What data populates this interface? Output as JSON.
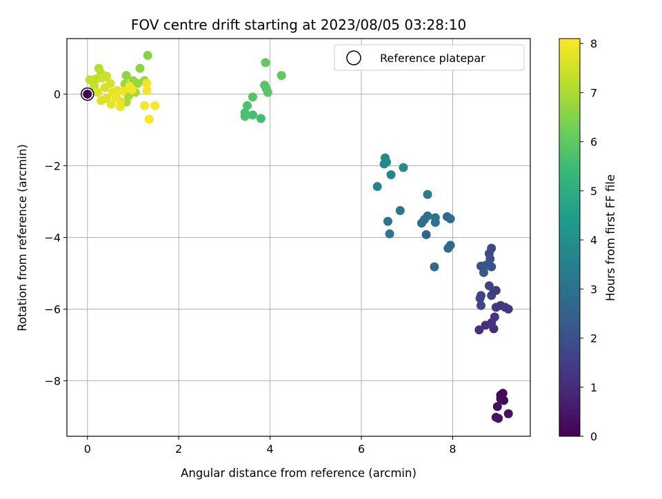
{
  "chart_data": {
    "type": "scatter",
    "title": "FOV centre drift starting at 2023/08/05 03:28:10",
    "xlabel": "Angular distance from reference (arcmin)",
    "ylabel": "Rotation from reference (arcmin)",
    "xlim": [
      -0.45,
      9.7
    ],
    "ylim": [
      -9.55,
      1.55
    ],
    "xticks": [
      0,
      2,
      4,
      6,
      8
    ],
    "yticks": [
      0,
      -2,
      -4,
      -6,
      -8
    ],
    "grid": true,
    "legend": {
      "placement": "top-right",
      "entries": [
        "Reference platepar"
      ]
    },
    "colorbar": {
      "label": "Hours from first FF file",
      "min": 0,
      "max": 8.1,
      "ticks": [
        0,
        1,
        2,
        3,
        4,
        5,
        6,
        7,
        8
      ],
      "colormap": "viridis",
      "colors": [
        "#440154",
        "#482878",
        "#3e4989",
        "#31688e",
        "#26828e",
        "#1f9e89",
        "#35b779",
        "#6ece58",
        "#b5de2b",
        "#fde725"
      ]
    },
    "reference_point": {
      "x": 0,
      "y": 0
    },
    "points": [
      {
        "x": 0,
        "y": 0,
        "c": 0
      },
      {
        "x": 9.05,
        "y": -8.4,
        "c": 0.1
      },
      {
        "x": 9.1,
        "y": -8.35,
        "c": 0.15
      },
      {
        "x": 9.05,
        "y": -8.5,
        "c": 0.2
      },
      {
        "x": 9.12,
        "y": -8.55,
        "c": 0.25
      },
      {
        "x": 8.98,
        "y": -8.72,
        "c": 0.3
      },
      {
        "x": 9.22,
        "y": -8.92,
        "c": 0.35
      },
      {
        "x": 8.95,
        "y": -9.02,
        "c": 0.4
      },
      {
        "x": 9.0,
        "y": -9.05,
        "c": 0.45
      },
      {
        "x": 8.9,
        "y": -6.55,
        "c": 1.0
      },
      {
        "x": 8.58,
        "y": -6.58,
        "c": 1.05
      },
      {
        "x": 8.72,
        "y": -6.45,
        "c": 1.1
      },
      {
        "x": 8.85,
        "y": -6.38,
        "c": 1.15
      },
      {
        "x": 8.92,
        "y": -6.22,
        "c": 1.2
      },
      {
        "x": 9.05,
        "y": -5.9,
        "c": 1.25
      },
      {
        "x": 8.95,
        "y": -5.95,
        "c": 1.3
      },
      {
        "x": 9.15,
        "y": -5.95,
        "c": 1.35
      },
      {
        "x": 9.22,
        "y": -6.0,
        "c": 1.4
      },
      {
        "x": 8.95,
        "y": -5.48,
        "c": 1.45
      },
      {
        "x": 8.9,
        "y": -5.5,
        "c": 1.5
      },
      {
        "x": 8.85,
        "y": -5.62,
        "c": 1.55
      },
      {
        "x": 8.8,
        "y": -5.35,
        "c": 1.6
      },
      {
        "x": 8.62,
        "y": -5.62,
        "c": 1.65
      },
      {
        "x": 8.6,
        "y": -5.7,
        "c": 1.7
      },
      {
        "x": 8.62,
        "y": -5.9,
        "c": 1.75
      },
      {
        "x": 8.85,
        "y": -4.3,
        "c": 1.8
      },
      {
        "x": 8.8,
        "y": -4.45,
        "c": 1.85
      },
      {
        "x": 8.82,
        "y": -4.6,
        "c": 1.9
      },
      {
        "x": 8.78,
        "y": -4.75,
        "c": 1.95
      },
      {
        "x": 8.85,
        "y": -4.82,
        "c": 2.0
      },
      {
        "x": 8.62,
        "y": -4.8,
        "c": 2.05
      },
      {
        "x": 8.68,
        "y": -4.85,
        "c": 2.1
      },
      {
        "x": 8.72,
        "y": -4.78,
        "c": 2.15
      },
      {
        "x": 8.68,
        "y": -4.98,
        "c": 2.2
      },
      {
        "x": 7.42,
        "y": -3.92,
        "c": 2.6
      },
      {
        "x": 7.6,
        "y": -4.82,
        "c": 2.65
      },
      {
        "x": 7.9,
        "y": -4.3,
        "c": 2.7
      },
      {
        "x": 7.95,
        "y": -4.22,
        "c": 2.75
      },
      {
        "x": 7.88,
        "y": -3.42,
        "c": 2.8
      },
      {
        "x": 7.95,
        "y": -3.48,
        "c": 2.85
      },
      {
        "x": 7.32,
        "y": -3.6,
        "c": 2.9
      },
      {
        "x": 7.38,
        "y": -3.5,
        "c": 2.95
      },
      {
        "x": 7.45,
        "y": -3.4,
        "c": 3.0
      },
      {
        "x": 7.62,
        "y": -3.45,
        "c": 3.05
      },
      {
        "x": 7.62,
        "y": -3.58,
        "c": 3.1
      },
      {
        "x": 6.62,
        "y": -3.9,
        "c": 3.15
      },
      {
        "x": 6.58,
        "y": -3.55,
        "c": 3.2
      },
      {
        "x": 6.85,
        "y": -3.25,
        "c": 3.25
      },
      {
        "x": 7.45,
        "y": -2.8,
        "c": 3.3
      },
      {
        "x": 6.35,
        "y": -2.58,
        "c": 3.7
      },
      {
        "x": 6.65,
        "y": -2.25,
        "c": 3.75
      },
      {
        "x": 6.5,
        "y": -1.95,
        "c": 3.8
      },
      {
        "x": 6.55,
        "y": -1.9,
        "c": 3.85
      },
      {
        "x": 6.52,
        "y": -1.78,
        "c": 3.9
      },
      {
        "x": 6.92,
        "y": -2.05,
        "c": 3.95
      },
      {
        "x": 3.8,
        "y": -0.68,
        "c": 5.6
      },
      {
        "x": 3.62,
        "y": -0.58,
        "c": 5.65
      },
      {
        "x": 3.45,
        "y": -0.52,
        "c": 5.7
      },
      {
        "x": 3.45,
        "y": -0.62,
        "c": 5.75
      },
      {
        "x": 3.5,
        "y": -0.32,
        "c": 5.8
      },
      {
        "x": 3.62,
        "y": -0.08,
        "c": 5.85
      },
      {
        "x": 3.88,
        "y": 0.25,
        "c": 5.9
      },
      {
        "x": 3.92,
        "y": 0.15,
        "c": 5.95
      },
      {
        "x": 3.95,
        "y": 0.05,
        "c": 6.0
      },
      {
        "x": 4.25,
        "y": 0.52,
        "c": 6.05
      },
      {
        "x": 3.9,
        "y": 0.88,
        "c": 6.1
      },
      {
        "x": 1.32,
        "y": 1.08,
        "c": 6.6
      },
      {
        "x": 1.15,
        "y": 0.72,
        "c": 6.65
      },
      {
        "x": 0.85,
        "y": 0.52,
        "c": 6.7
      },
      {
        "x": 1.0,
        "y": 0.38,
        "c": 6.75
      },
      {
        "x": 1.25,
        "y": 0.38,
        "c": 6.8
      },
      {
        "x": 1.1,
        "y": 0.3,
        "c": 6.85
      },
      {
        "x": 0.82,
        "y": 0.28,
        "c": 6.9
      },
      {
        "x": 1.05,
        "y": 0.05,
        "c": 6.95
      },
      {
        "x": 0.9,
        "y": -0.05,
        "c": 7.0
      },
      {
        "x": 0.85,
        "y": -0.22,
        "c": 7.05
      },
      {
        "x": 0.25,
        "y": 0.72,
        "c": 7.2
      },
      {
        "x": 0.3,
        "y": 0.58,
        "c": 7.25
      },
      {
        "x": 0.18,
        "y": 0.42,
        "c": 7.3
      },
      {
        "x": 0.05,
        "y": 0.4,
        "c": 7.35
      },
      {
        "x": 0.15,
        "y": 0.22,
        "c": 7.4
      },
      {
        "x": 0.32,
        "y": 0.45,
        "c": 7.45
      },
      {
        "x": 0.42,
        "y": 0.5,
        "c": 7.5
      },
      {
        "x": 0.5,
        "y": 0.3,
        "c": 7.55
      },
      {
        "x": 0.38,
        "y": 0.18,
        "c": 7.6
      },
      {
        "x": 0.22,
        "y": 0.05,
        "c": 7.65
      },
      {
        "x": 0.3,
        "y": -0.18,
        "c": 7.7
      },
      {
        "x": 0.42,
        "y": -0.12,
        "c": 7.72
      },
      {
        "x": 0.55,
        "y": 0.05,
        "c": 7.75
      },
      {
        "x": 0.52,
        "y": -0.28,
        "c": 7.78
      },
      {
        "x": 0.65,
        "y": 0.1,
        "c": 7.8
      },
      {
        "x": 0.72,
        "y": -0.2,
        "c": 7.82
      },
      {
        "x": 0.72,
        "y": -0.35,
        "c": 7.85
      },
      {
        "x": 0.62,
        "y": -0.08,
        "c": 7.88
      },
      {
        "x": 0.78,
        "y": 0.08,
        "c": 7.9
      },
      {
        "x": 0.92,
        "y": 0.22,
        "c": 7.92
      },
      {
        "x": 0.98,
        "y": 0.12,
        "c": 7.95
      },
      {
        "x": 1.3,
        "y": 0.3,
        "c": 7.97
      },
      {
        "x": 1.3,
        "y": 0.1,
        "c": 8.0
      },
      {
        "x": 1.25,
        "y": -0.32,
        "c": 8.02
      },
      {
        "x": 1.48,
        "y": -0.32,
        "c": 8.05
      },
      {
        "x": 1.35,
        "y": -0.7,
        "c": 8.08
      }
    ]
  }
}
